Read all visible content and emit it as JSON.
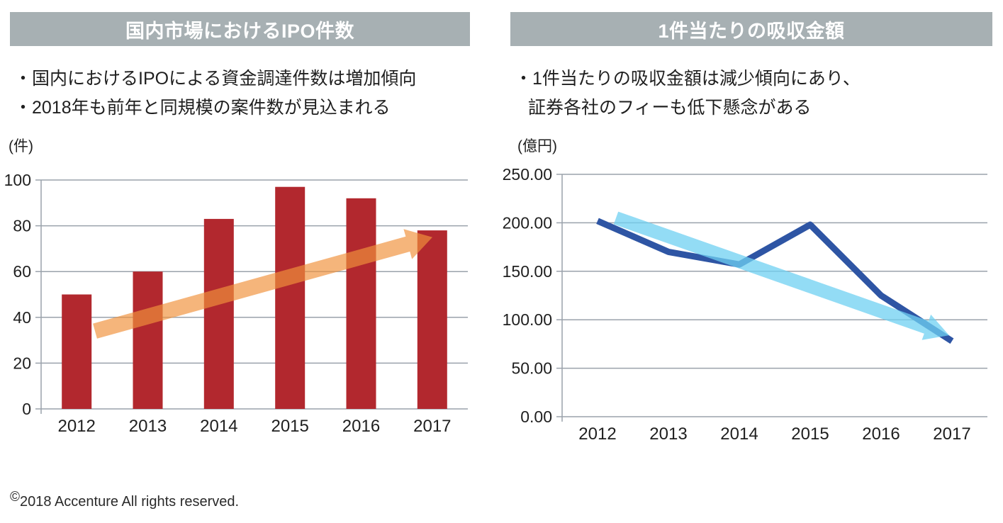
{
  "colors": {
    "header_bg": "#a7b0b3",
    "grid_line": "#9aa2ab",
    "bar_red": "#b2282e",
    "trend_orange": "#f0923c",
    "line_dark_blue": "#2e55a4",
    "trend_light_blue": "#6fd0f2",
    "text": "#1f1f1f"
  },
  "panels": {
    "left": {
      "header": "国内市場におけるIPO件数",
      "bullets": [
        "・国内におけるIPOによる資金調達件数は増加傾向",
        "・2018年も前年と同規模の案件数が見込まれる"
      ]
    },
    "right": {
      "header": "1件当たりの吸収金額",
      "bullets": [
        "・1件当たりの吸収金額は減少傾向にあり、",
        "証券各社のフィーも低下懸念がある"
      ]
    }
  },
  "chart_data": [
    {
      "type": "bar",
      "title": "国内市場におけるIPO件数",
      "unit_label": "(件)",
      "categories": [
        "2012",
        "2013",
        "2014",
        "2015",
        "2016",
        "2017"
      ],
      "values": [
        50,
        60,
        83,
        97,
        92,
        78
      ],
      "ylim": [
        0,
        100
      ],
      "ytick_step": 20,
      "ytick_labels": [
        "100",
        "80",
        "60",
        "40",
        "20",
        "0"
      ],
      "grid": true,
      "legend": "none",
      "bar_color": "#b2282e",
      "trend_arrow": {
        "direction": "up",
        "color": "#f0923c",
        "opacity": 0.68,
        "from_value": 34,
        "to_value": 75
      }
    },
    {
      "type": "line",
      "title": "1件当たりの吸収金額",
      "unit_label": "(億円)",
      "categories": [
        "2012",
        "2013",
        "2014",
        "2015",
        "2016",
        "2017"
      ],
      "series": [
        {
          "name": "1件当たりの吸収金額",
          "values": [
            202,
            170,
            157,
            198,
            125,
            78
          ],
          "color": "#2e55a4"
        }
      ],
      "ylim": [
        0,
        250
      ],
      "ytick_step": 50,
      "ytick_labels": [
        "250.00",
        "200.00",
        "150.00",
        "100.00",
        "50.00",
        "0.00"
      ],
      "grid": true,
      "legend": "none",
      "trend_arrow": {
        "direction": "down",
        "color": "#6fd0f2",
        "opacity": 0.75,
        "from_value": 205,
        "to_value": 84
      }
    }
  ],
  "footer": {
    "copyright_symbol": "©",
    "text": "2018 Accenture All rights reserved."
  }
}
